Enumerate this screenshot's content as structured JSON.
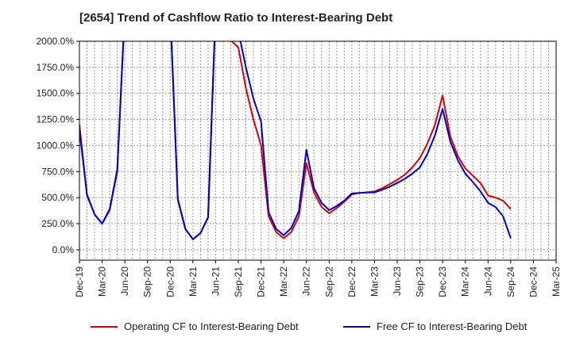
{
  "chart_data": {
    "type": "line",
    "title": "[2654]  Trend of Cashflow Ratio to Interest-Bearing Debt",
    "ylim": [
      -100,
      2000
    ],
    "y_ticks": [
      0,
      250,
      500,
      750,
      1000,
      1250,
      1500,
      1750,
      2000
    ],
    "y_tick_labels": [
      "0.0%",
      "250.0%",
      "500.0%",
      "750.0%",
      "1000.0%",
      "1250.0%",
      "1500.0%",
      "1750.0%",
      "2000.0%"
    ],
    "x_tick_labels": [
      "Dec-19",
      "Mar-20",
      "Jun-20",
      "Sep-20",
      "Dec-20",
      "Mar-21",
      "Jun-21",
      "Sep-21",
      "Dec-21",
      "Mar-22",
      "Jun-22",
      "Sep-22",
      "Dec-22",
      "Mar-23",
      "Jun-23",
      "Sep-23",
      "Dec-23",
      "Mar-24",
      "Jun-24",
      "Sep-24",
      "Dec-24",
      "Mar-25"
    ],
    "x_months": [
      "Dec-19",
      "Jan-20",
      "Feb-20",
      "Mar-20",
      "Apr-20",
      "May-20",
      "Jun-20",
      "Jul-20",
      "Aug-20",
      "Sep-20",
      "Oct-20",
      "Nov-20",
      "Dec-20",
      "Jan-21",
      "Feb-21",
      "Mar-21",
      "Apr-21",
      "May-21",
      "Jun-21",
      "Jul-21",
      "Aug-21",
      "Sep-21",
      "Oct-21",
      "Nov-21",
      "Dec-21",
      "Jan-22",
      "Feb-22",
      "Mar-22",
      "Apr-22",
      "May-22",
      "Jun-22",
      "Jul-22",
      "Aug-22",
      "Sep-22",
      "Oct-22",
      "Nov-22",
      "Dec-22",
      "Jan-23",
      "Feb-23",
      "Mar-23",
      "Apr-23",
      "May-23",
      "Jun-23",
      "Jul-23",
      "Aug-23",
      "Sep-23",
      "Oct-23",
      "Nov-23",
      "Dec-23",
      "Jan-24",
      "Feb-24",
      "Mar-24",
      "Apr-24",
      "May-24",
      "Jun-24",
      "Jul-24",
      "Aug-24",
      "Sep-24",
      "Oct-24",
      "Nov-24",
      "Dec-24",
      "Jan-25",
      "Feb-25",
      "Mar-25"
    ],
    "grid": true,
    "legend_position": "bottom",
    "series": [
      {
        "name": "Operating CF to Interest-Bearing Debt",
        "color": "#dd0000",
        "points": [
          [
            "Dec-19",
            1200
          ],
          [
            "Jan-20",
            520
          ],
          [
            "Feb-20",
            340
          ],
          [
            "Mar-20",
            250
          ],
          [
            "Apr-20",
            380
          ],
          [
            "May-20",
            750
          ],
          [
            "Jun-20",
            2300
          ],
          [
            "Dec-20",
            2300
          ],
          [
            "Jan-21",
            480
          ],
          [
            "Feb-21",
            200
          ],
          [
            "Mar-21",
            100
          ],
          [
            "Apr-21",
            160
          ],
          [
            "May-21",
            310
          ],
          [
            "Jun-21",
            2300
          ],
          [
            "Aug-21",
            2010
          ],
          [
            "Sep-21",
            1940
          ],
          [
            "Oct-21",
            1550
          ],
          [
            "Nov-21",
            1250
          ],
          [
            "Dec-21",
            1000
          ],
          [
            "Jan-22",
            320
          ],
          [
            "Feb-22",
            170
          ],
          [
            "Mar-22",
            110
          ],
          [
            "Apr-22",
            170
          ],
          [
            "May-22",
            320
          ],
          [
            "Jun-22",
            830
          ],
          [
            "Jul-22",
            550
          ],
          [
            "Aug-22",
            410
          ],
          [
            "Sep-22",
            350
          ],
          [
            "Oct-22",
            400
          ],
          [
            "Nov-22",
            460
          ],
          [
            "Dec-22",
            530
          ],
          [
            "Jan-23",
            545
          ],
          [
            "Feb-23",
            550
          ],
          [
            "Mar-23",
            560
          ],
          [
            "Apr-23",
            590
          ],
          [
            "May-23",
            630
          ],
          [
            "Jun-23",
            670
          ],
          [
            "Jul-23",
            720
          ],
          [
            "Aug-23",
            790
          ],
          [
            "Sep-23",
            880
          ],
          [
            "Oct-23",
            1020
          ],
          [
            "Nov-23",
            1200
          ],
          [
            "Dec-23",
            1480
          ],
          [
            "Jan-24",
            1090
          ],
          [
            "Feb-24",
            900
          ],
          [
            "Mar-24",
            780
          ],
          [
            "Apr-24",
            710
          ],
          [
            "May-24",
            640
          ],
          [
            "Jun-24",
            520
          ],
          [
            "Jul-24",
            500
          ],
          [
            "Aug-24",
            470
          ],
          [
            "Sep-24",
            390
          ]
        ]
      },
      {
        "name": "Free CF to Interest-Bearing Debt",
        "color": "#0000cc",
        "points": [
          [
            "Dec-19",
            1150
          ],
          [
            "Jan-20",
            530
          ],
          [
            "Feb-20",
            340
          ],
          [
            "Mar-20",
            250
          ],
          [
            "Apr-20",
            390
          ],
          [
            "May-20",
            770
          ],
          [
            "Jun-20",
            2300
          ],
          [
            "Dec-20",
            2300
          ],
          [
            "Jan-21",
            490
          ],
          [
            "Feb-21",
            200
          ],
          [
            "Mar-21",
            100
          ],
          [
            "Apr-21",
            160
          ],
          [
            "May-21",
            310
          ],
          [
            "Jun-21",
            2300
          ],
          [
            "Sep-21",
            2100
          ],
          [
            "Oct-21",
            1750
          ],
          [
            "Nov-21",
            1450
          ],
          [
            "Dec-21",
            1230
          ],
          [
            "Jan-22",
            360
          ],
          [
            "Feb-22",
            200
          ],
          [
            "Mar-22",
            140
          ],
          [
            "Apr-22",
            210
          ],
          [
            "May-22",
            370
          ],
          [
            "Jun-22",
            960
          ],
          [
            "Jul-22",
            590
          ],
          [
            "Aug-22",
            450
          ],
          [
            "Sep-22",
            380
          ],
          [
            "Oct-22",
            420
          ],
          [
            "Nov-22",
            470
          ],
          [
            "Dec-22",
            540
          ],
          [
            "Jan-23",
            545
          ],
          [
            "Feb-23",
            550
          ],
          [
            "Mar-23",
            550
          ],
          [
            "Apr-23",
            575
          ],
          [
            "May-23",
            605
          ],
          [
            "Jun-23",
            640
          ],
          [
            "Jul-23",
            680
          ],
          [
            "Aug-23",
            730
          ],
          [
            "Sep-23",
            790
          ],
          [
            "Oct-23",
            920
          ],
          [
            "Nov-23",
            1100
          ],
          [
            "Dec-23",
            1350
          ],
          [
            "Jan-24",
            1040
          ],
          [
            "Feb-24",
            860
          ],
          [
            "Mar-24",
            730
          ],
          [
            "Apr-24",
            650
          ],
          [
            "May-24",
            560
          ],
          [
            "Jun-24",
            450
          ],
          [
            "Jul-24",
            410
          ],
          [
            "Aug-24",
            320
          ],
          [
            "Sep-24",
            110
          ]
        ]
      }
    ]
  }
}
